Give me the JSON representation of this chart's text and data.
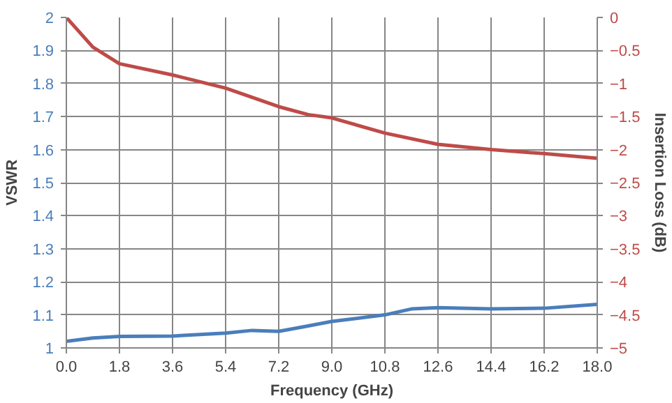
{
  "chart_data": {
    "type": "line",
    "xlabel": "Frequency (GHz)",
    "ylabel": "VSWR",
    "y2label": "Insertion Loss (dB)",
    "xlim": [
      0,
      18
    ],
    "xticks": [
      {
        "value": 0,
        "label": "0.0"
      },
      1.8,
      3.6,
      5.4,
      7.2,
      {
        "value": 9,
        "label": "9.0"
      },
      10.8,
      12.6,
      14.4,
      16.2,
      {
        "value": 18,
        "label": "18.0"
      }
    ],
    "ylim": [
      1,
      2
    ],
    "yticks": [
      1,
      1.1,
      1.2,
      1.3,
      1.4,
      1.5,
      1.6,
      1.7,
      1.8,
      1.9,
      2
    ],
    "y2lim": [
      -5,
      0
    ],
    "y2ticks": [
      -5,
      -4.5,
      -4,
      -3.5,
      -3,
      -2.5,
      -2,
      -1.5,
      -1,
      -0.5,
      0
    ],
    "grid": true,
    "series": [
      {
        "color": "#4a7ebb",
        "x": [
          0,
          0.9,
          1.8,
          3.6,
          5.4,
          6.3,
          7.2,
          8.1,
          9,
          10.8,
          11.7,
          12.6,
          14.4,
          16.2,
          18
        ],
        "values": [
          1.02,
          1.03,
          1.035,
          1.036,
          1.045,
          1.053,
          1.05,
          1.065,
          1.08,
          1.1,
          1.118,
          1.122,
          1.118,
          1.12,
          1.132
        ]
      },
      {
        "color": "#be4b48",
        "axis": "y2",
        "x": [
          0,
          0.9,
          1.8,
          3.6,
          5.4,
          7.2,
          8.2,
          9,
          10.8,
          12.6,
          14.4,
          16.2,
          18
        ],
        "values": [
          0,
          -0.45,
          -0.7,
          -0.87,
          -1.07,
          -1.35,
          -1.47,
          -1.52,
          -1.75,
          -1.92,
          -2.0,
          -2.06,
          -2.13
        ]
      }
    ]
  }
}
